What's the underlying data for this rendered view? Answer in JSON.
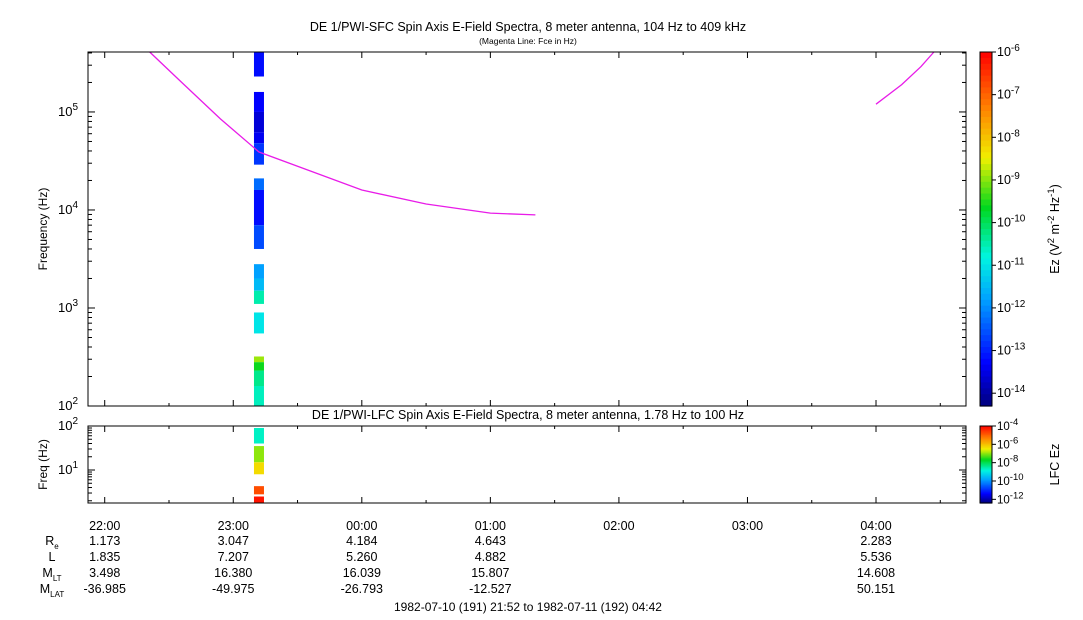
{
  "title": "DE 1/PWI-SFC  Spin Axis E-Field Spectra, 8 meter antenna, 104 Hz to 409 kHz",
  "subtitle": "(Magenta Line: Fce in Hz)",
  "colors": {
    "fce_line": "#e81ce8",
    "axis": "#000000",
    "background": "#ffffff"
  },
  "time_range_label": "1982-07-10 (191) 21:52 to 1982-07-11 (192) 04:42",
  "chart_data": [
    {
      "id": "sfc",
      "type": "heatmap",
      "title": "DE 1/PWI-SFC  Spin Axis E-Field Spectra, 8 meter antenna, 104 Hz to 409 kHz",
      "subtitle": "(Magenta Line: Fce in Hz)",
      "ylabel": "Frequency (Hz)",
      "yscale": "log",
      "ylim": [
        100,
        409000
      ],
      "xlim_hours": [
        21.87,
        28.7
      ],
      "yticks": [
        {
          "value": 100,
          "base": "10",
          "exp": "2"
        },
        {
          "value": 1000,
          "base": "10",
          "exp": "3"
        },
        {
          "value": 10000,
          "base": "10",
          "exp": "4"
        },
        {
          "value": 100000,
          "base": "10",
          "exp": "5"
        }
      ],
      "colorbar": {
        "label": "Ez (V² m⁻² Hz⁻¹)",
        "label_parts": {
          "name": "Ez (V",
          "sq": "2",
          "m": " m",
          "mexp": "-2",
          "hz": " Hz",
          "hzexp": "-1",
          "close": ")"
        },
        "log_range": [
          -14.3,
          -6
        ],
        "ticks": [
          {
            "value": -6,
            "base": "10",
            "exp": "-6"
          },
          {
            "value": -7,
            "base": "10",
            "exp": "-7"
          },
          {
            "value": -8,
            "base": "10",
            "exp": "-8"
          },
          {
            "value": -9,
            "base": "10",
            "exp": "-9"
          },
          {
            "value": -10,
            "base": "10",
            "exp": "-10"
          },
          {
            "value": -11,
            "base": "10",
            "exp": "-11"
          },
          {
            "value": -12,
            "base": "10",
            "exp": "-12"
          },
          {
            "value": -13,
            "base": "10",
            "exp": "-13"
          },
          {
            "value": -14,
            "base": "10",
            "exp": "-14"
          }
        ]
      },
      "spectra_column_time": 23.2,
      "spectra_cells": [
        {
          "f0": 230000,
          "f1": 409000,
          "log_value": -13.2
        },
        {
          "f0": 100000,
          "f1": 160000,
          "log_value": -13.3
        },
        {
          "f0": 62000,
          "f1": 100000,
          "log_value": -13.6
        },
        {
          "f0": 48000,
          "f1": 62000,
          "log_value": -13.4
        },
        {
          "f0": 29000,
          "f1": 48000,
          "log_value": -12.8
        },
        {
          "f0": 16000,
          "f1": 21000,
          "log_value": -12.3
        },
        {
          "f0": 7000,
          "f1": 16000,
          "log_value": -13.2
        },
        {
          "f0": 4000,
          "f1": 7000,
          "log_value": -12.6
        },
        {
          "f0": 2000,
          "f1": 2800,
          "log_value": -11.8
        },
        {
          "f0": 1500,
          "f1": 2000,
          "log_value": -11.5
        },
        {
          "f0": 1100,
          "f1": 1500,
          "log_value": -10.5
        },
        {
          "f0": 550,
          "f1": 900,
          "log_value": -11.0
        },
        {
          "f0": 280,
          "f1": 320,
          "log_value": -8.9
        },
        {
          "f0": 230,
          "f1": 280,
          "log_value": -9.6
        },
        {
          "f0": 160,
          "f1": 230,
          "log_value": -10.3
        },
        {
          "f0": 100,
          "f1": 160,
          "log_value": -10.6
        }
      ],
      "fce_line": [
        {
          "t": 22.35,
          "f": 409000
        },
        {
          "t": 22.6,
          "f": 200000
        },
        {
          "t": 22.9,
          "f": 85000
        },
        {
          "t": 23.2,
          "f": 39000
        },
        {
          "t": 23.6,
          "f": 25000
        },
        {
          "t": 24.0,
          "f": 16000
        },
        {
          "t": 24.5,
          "f": 11500
        },
        {
          "t": 25.0,
          "f": 9300
        },
        {
          "t": 25.35,
          "f": 8900
        }
      ],
      "fce_line_2": [
        {
          "t": 28.0,
          "f": 120000
        },
        {
          "t": 28.2,
          "f": 190000
        },
        {
          "t": 28.35,
          "f": 290000
        },
        {
          "t": 28.45,
          "f": 409000
        }
      ]
    },
    {
      "id": "lfc",
      "type": "heatmap",
      "title": "DE 1/PWI-LFC  Spin Axis E-Field Spectra, 8 meter antenna, 1.78 Hz to 100 Hz",
      "ylabel": "Freq (Hz)",
      "yscale": "log",
      "ylim": [
        1.78,
        100
      ],
      "xlim_hours": [
        21.87,
        28.7
      ],
      "yticks": [
        {
          "value": 10,
          "base": "10",
          "exp": "1"
        },
        {
          "value": 100,
          "base": "10",
          "exp": "2"
        }
      ],
      "colorbar": {
        "label": "LFC Ez",
        "log_range": [
          -12.4,
          -4
        ],
        "ticks": [
          {
            "value": -4,
            "base": "10",
            "exp": "-4"
          },
          {
            "value": -6,
            "base": "10",
            "exp": "-6"
          },
          {
            "value": -8,
            "base": "10",
            "exp": "-8"
          },
          {
            "value": -10,
            "base": "10",
            "exp": "-10"
          },
          {
            "value": -12,
            "base": "10",
            "exp": "-12"
          }
        ]
      },
      "spectra_column_time": 23.2,
      "spectra_cells": [
        {
          "f0": 40,
          "f1": 90,
          "log_value": -8.7
        },
        {
          "f0": 15,
          "f1": 35,
          "log_value": -7.0
        },
        {
          "f0": 8,
          "f1": 15,
          "log_value": -6.3
        },
        {
          "f0": 2.8,
          "f1": 4.3,
          "log_value": -4.8
        },
        {
          "f0": 1.78,
          "f1": 2.5,
          "log_value": -4.2
        }
      ]
    }
  ],
  "time_axis": {
    "major_ticks": [
      {
        "hour": 22,
        "label": "22:00"
      },
      {
        "hour": 23,
        "label": "23:00"
      },
      {
        "hour": 24,
        "label": "00:00"
      },
      {
        "hour": 25,
        "label": "01:00"
      },
      {
        "hour": 26,
        "label": "02:00"
      },
      {
        "hour": 27,
        "label": "03:00"
      },
      {
        "hour": 28,
        "label": "04:00"
      }
    ]
  },
  "ephemeris": {
    "rows": [
      {
        "label": "R",
        "sub": "e",
        "values": [
          "1.173",
          "3.047",
          "4.184",
          "4.643",
          "",
          "",
          "2.283"
        ]
      },
      {
        "label": "L",
        "sub": "",
        "values": [
          "1.835",
          "7.207",
          "5.260",
          "4.882",
          "",
          "",
          "5.536"
        ]
      },
      {
        "label": "M",
        "sub": "LT",
        "values": [
          "3.498",
          "16.380",
          "16.039",
          "15.807",
          "",
          "",
          "14.608"
        ]
      },
      {
        "label": "M",
        "sub": "LAT",
        "values": [
          "-36.985",
          "-49.975",
          "-26.793",
          "-12.527",
          "",
          "",
          "50.151"
        ]
      }
    ]
  }
}
